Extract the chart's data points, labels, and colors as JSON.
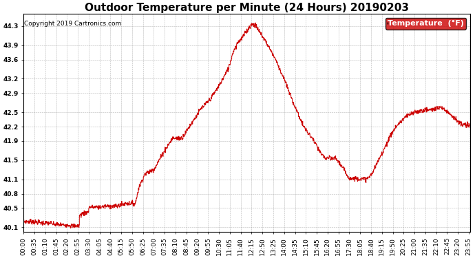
{
  "title": "Outdoor Temperature per Minute (24 Hours) 20190203",
  "copyright": "Copyright 2019 Cartronics.com",
  "legend_label": "Temperature  (°F)",
  "line_color": "#cc0000",
  "background_color": "#ffffff",
  "grid_color": "#888888",
  "ylim": [
    40.0,
    44.55
  ],
  "yticks": [
    40.1,
    40.5,
    40.8,
    41.1,
    41.5,
    41.9,
    42.2,
    42.5,
    42.9,
    43.2,
    43.6,
    43.9,
    44.3
  ],
  "title_fontsize": 11,
  "tick_fontsize": 6.5,
  "legend_bg": "#cc0000",
  "legend_text_color": "#ffffff",
  "figwidth": 6.9,
  "figheight": 3.75,
  "dpi": 100
}
